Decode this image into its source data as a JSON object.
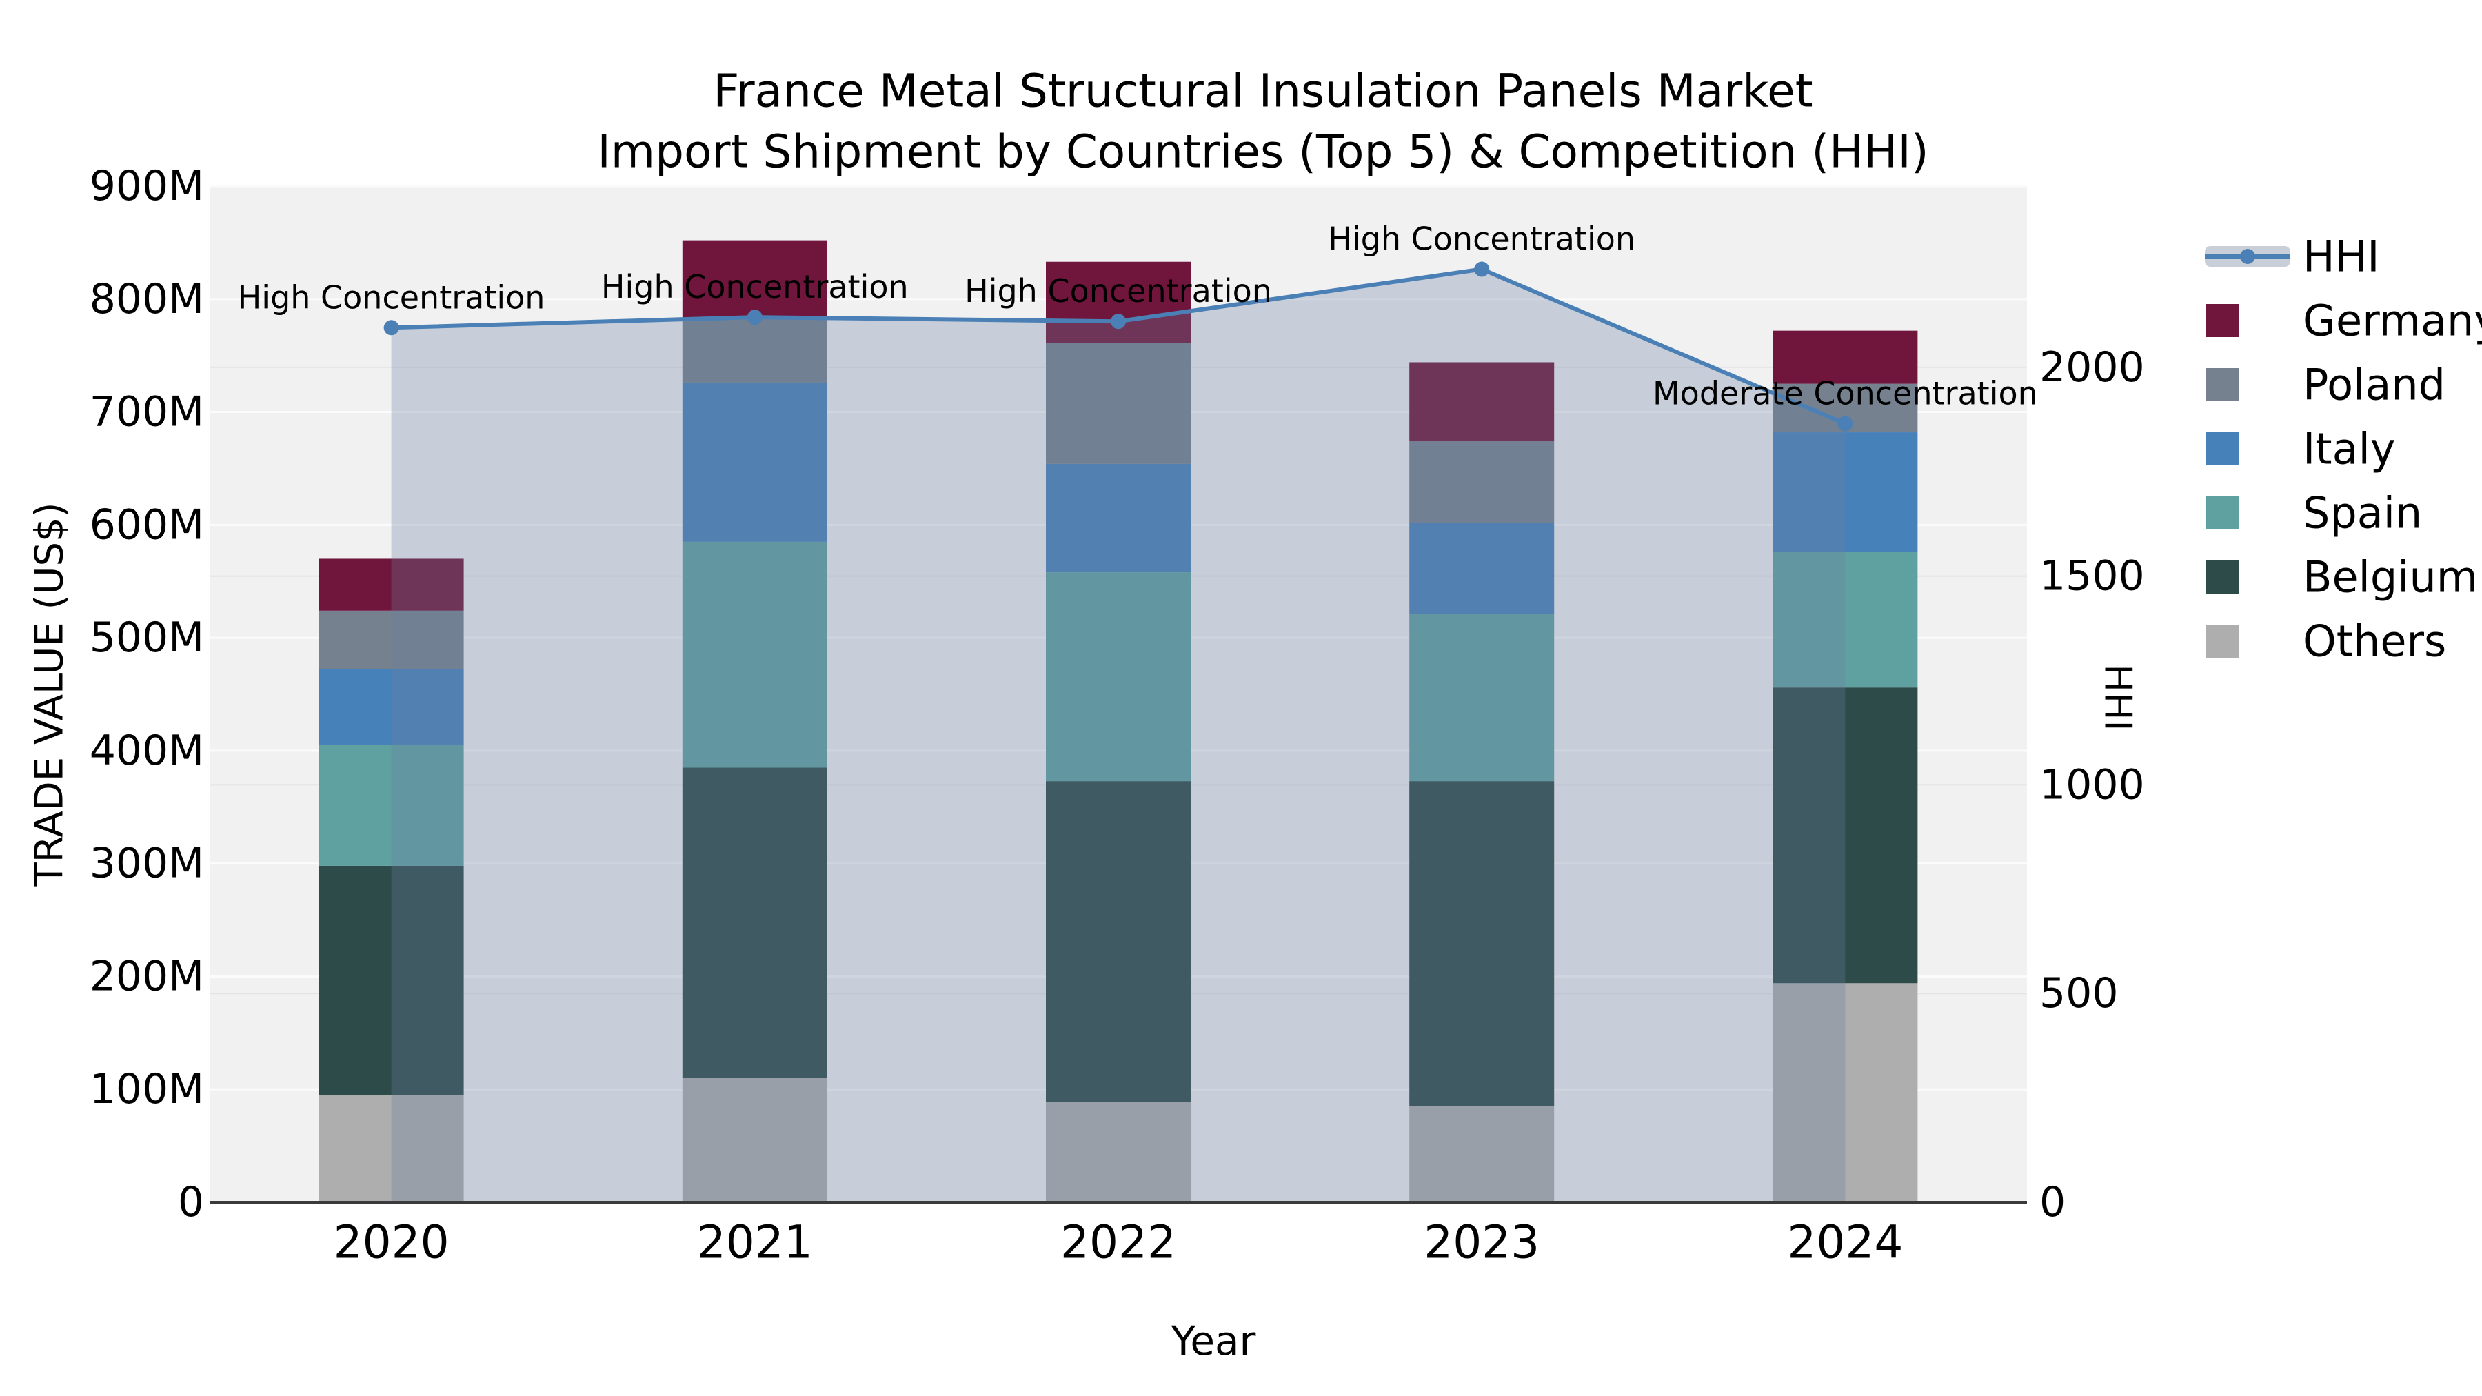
{
  "title": {
    "line1": "France Metal Structural Insulation Panels Market",
    "line2": "Import Shipment by Countries (Top 5) & Competition (HHI)"
  },
  "chart_data": {
    "type": "combo-stacked-bar-line",
    "categories": [
      "2020",
      "2021",
      "2022",
      "2023",
      "2024"
    ],
    "bar_unit": "M US$",
    "series": [
      {
        "name": "Others",
        "color": "#aeaeae",
        "values": [
          95,
          110,
          89,
          85,
          194
        ]
      },
      {
        "name": "Belgium",
        "color": "#2d4b48",
        "values": [
          203,
          275,
          284,
          288,
          262
        ]
      },
      {
        "name": "Spain",
        "color": "#5fa1a1",
        "values": [
          107,
          200,
          185,
          148,
          120
        ]
      },
      {
        "name": "Italy",
        "color": "#4781b9",
        "values": [
          67,
          141,
          96,
          81,
          106
        ]
      },
      {
        "name": "Poland",
        "color": "#75818f",
        "values": [
          52,
          57,
          107,
          72,
          43
        ]
      },
      {
        "name": "Germany",
        "color": "#70163c",
        "values": [
          46,
          69,
          72,
          70,
          47
        ]
      }
    ],
    "totals": [
      570,
      852,
      833,
      744,
      772
    ],
    "line_series": {
      "name": "HHI",
      "color": "#4a80b5",
      "area_color": "rgba(105,125,158,0.30)",
      "values": [
        2095,
        2120,
        2110,
        2235,
        1865
      ]
    },
    "annotations": [
      {
        "category": "2020",
        "text": "High Concentration"
      },
      {
        "category": "2021",
        "text": "High Concentration"
      },
      {
        "category": "2022",
        "text": "High Concentration"
      },
      {
        "category": "2023",
        "text": "High Concentration"
      },
      {
        "category": "2024",
        "text": "Moderate Concentration"
      }
    ],
    "y_left": {
      "label": "TRADE VALUE (US$)",
      "min": 0,
      "max": 900,
      "tick_values": [
        0,
        100,
        200,
        300,
        400,
        500,
        600,
        700,
        800,
        900
      ],
      "tick_labels": [
        "0",
        "100M",
        "200M",
        "300M",
        "400M",
        "500M",
        "600M",
        "700M",
        "800M",
        "900M"
      ]
    },
    "y_right": {
      "label": "HHI",
      "min": 0,
      "max": 2434,
      "tick_values": [
        0,
        500,
        1000,
        1500,
        2000
      ],
      "tick_labels": [
        "0",
        "500",
        "1000",
        "1500",
        "2000"
      ]
    },
    "x_label": "Year",
    "legend": [
      "HHI",
      "Germany",
      "Poland",
      "Italy",
      "Spain",
      "Belgium",
      "Others"
    ],
    "grid": {
      "left_gridline_color": "#fbfbfb",
      "right_gridline_color": "#e4e4e7",
      "plot_bg": "#f1f1f2",
      "axis_color": "#3a3a3a"
    }
  }
}
